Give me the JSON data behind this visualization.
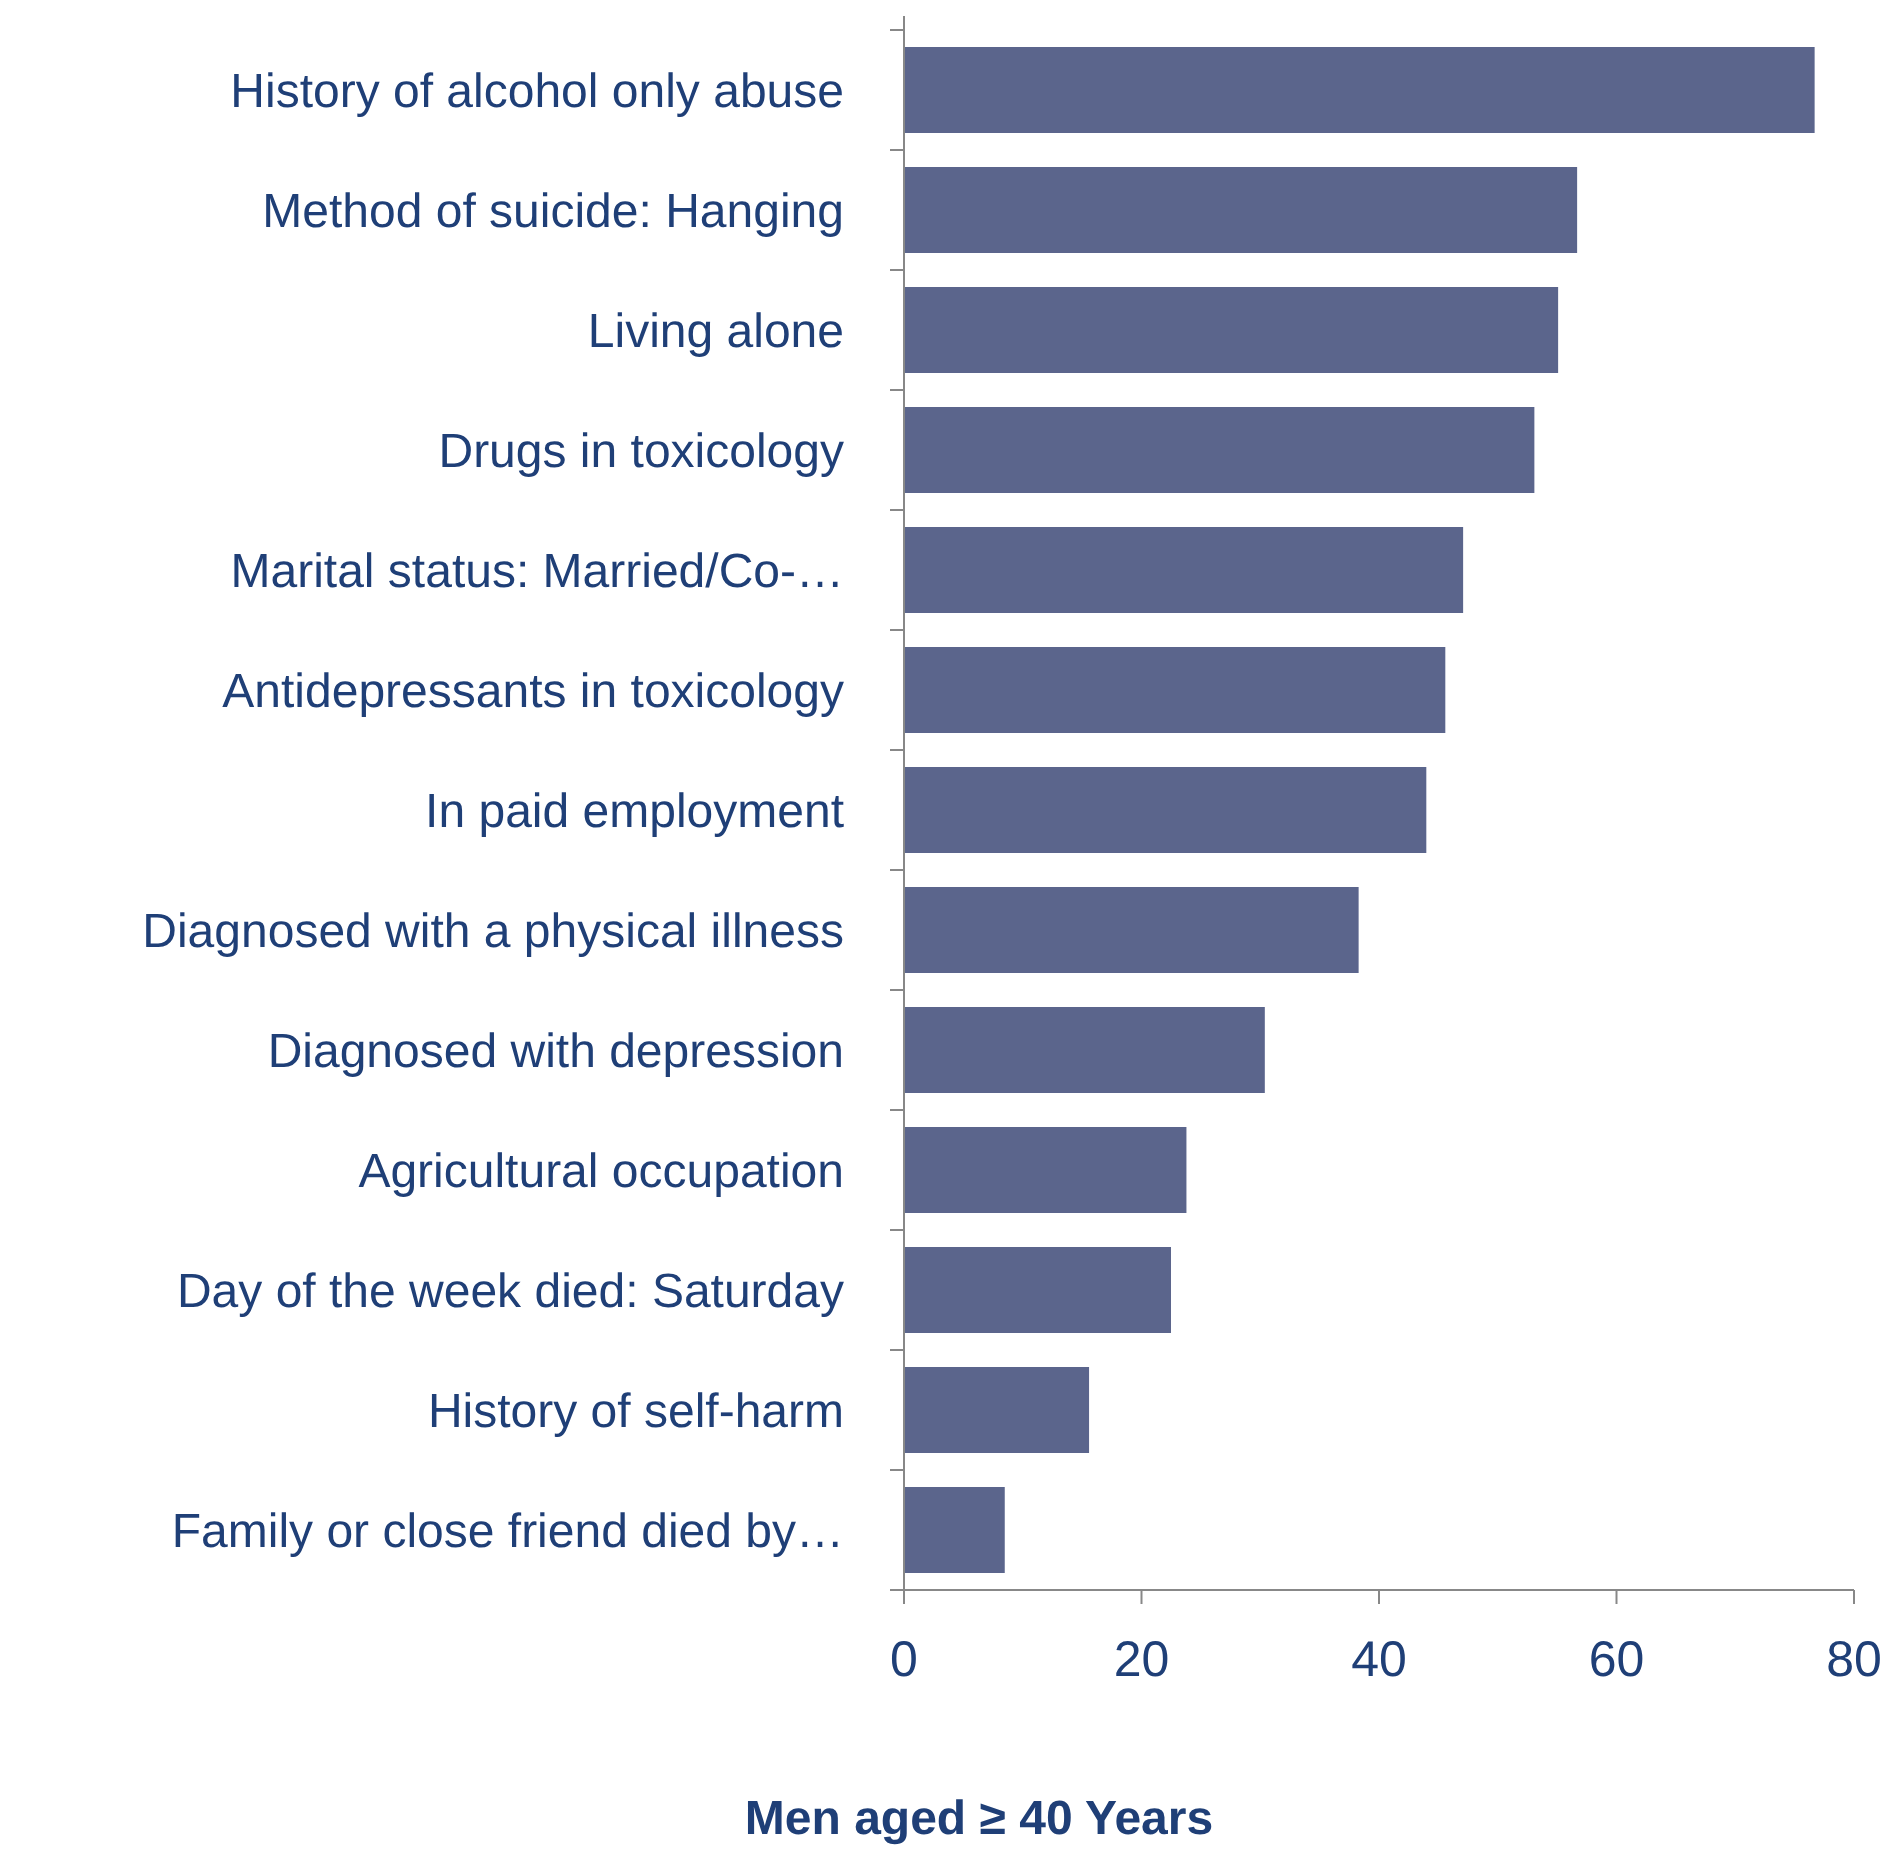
{
  "chart_data": {
    "type": "bar",
    "orientation": "horizontal",
    "xlabel": "Men aged ≥ 40 Years",
    "categories": [
      "History of alcohol only abuse",
      "Method of suicide: Hanging",
      "Living alone",
      "Drugs in toxicology",
      "Marital status: Married/Co-…",
      "Antidepressants in toxicology",
      "In paid employment",
      "Diagnosed with a physical illness",
      "Diagnosed with depression",
      "Agricultural occupation",
      "Day of the week died: Saturday",
      "History of self-harm",
      "Family or close friend died by…"
    ],
    "values": [
      76.6,
      56.6,
      55.0,
      53.0,
      47.0,
      45.5,
      43.9,
      38.2,
      30.3,
      23.7,
      22.4,
      15.5,
      8.4
    ],
    "color": "#5b658c",
    "xlim": [
      0,
      80
    ],
    "xticks": [
      0,
      20,
      40,
      60,
      80
    ],
    "grid": false
  }
}
